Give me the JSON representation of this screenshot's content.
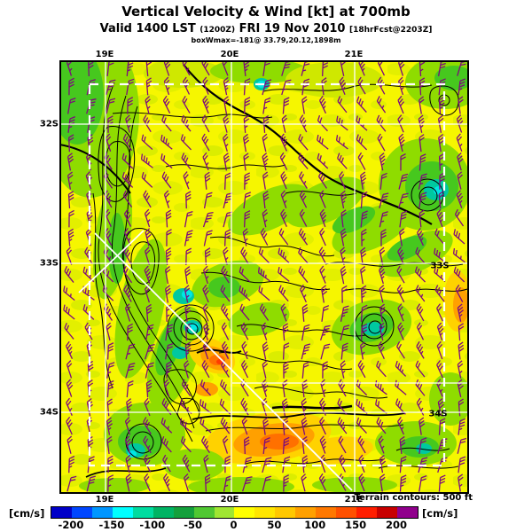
{
  "header": {
    "title": "Vertical Velocity & Wind [kt] at 700mb",
    "valid": "Valid 1400 LST",
    "init": "(1200Z)",
    "date": "FRI 19 Nov 2010",
    "fcst": "[18hrFcst@2203Z]",
    "stats_line": "boxWmax=-181@ 33.79,20.12,1898m"
  },
  "map": {
    "lon_ticks": [
      "19E",
      "20E",
      "21E"
    ],
    "lat_ticks_left": [
      "32S",
      "33S",
      "34S"
    ],
    "lat_ticks_right": [
      "33S",
      "34S"
    ],
    "terrain_note": "Terrain contours: 500 ft",
    "barb_color": "#7D0A7D",
    "background_color": "#F6F600"
  },
  "colorbar": {
    "unit_left": "[cm/s]",
    "unit_right": "[cm/s]",
    "tick_labels": [
      "-200",
      "-150",
      "-100",
      "-50",
      "0",
      "50",
      "100",
      "150",
      "200"
    ],
    "segment_colors": [
      "#0000C8",
      "#0046FF",
      "#0096FF",
      "#00FFFF",
      "#00DCA0",
      "#00B464",
      "#14A03C",
      "#50C832",
      "#A0E632",
      "#FFFF00",
      "#FFE600",
      "#FFC800",
      "#FFA000",
      "#FF7800",
      "#FF5000",
      "#FF1E00",
      "#C80000",
      "#90008C"
    ]
  },
  "chart_data": {
    "type": "heatmap",
    "title": "Vertical Velocity & Wind [kt] at 700mb",
    "subtitle": "Valid 1400 LST (1200Z) FRI 19 Nov 2010 [18hrFcst@2203Z]",
    "annotation": "boxWmax=-181@ 33.79,20.12,1898m",
    "shaded_field": "vertical velocity (cm/s), filled contours",
    "vector_field": "wind barbs (kt), purple",
    "overlay": "terrain height contours, interval 500 ft, black",
    "x_axis": {
      "label": "longitude",
      "ticks": [
        "19E",
        "20E",
        "21E"
      ]
    },
    "y_axis": {
      "label": "latitude",
      "ticks": [
        "32S",
        "33S",
        "34S"
      ]
    },
    "colorbar": {
      "units": "cm/s",
      "range": [
        -225,
        225
      ],
      "step": 25,
      "tick_values": [
        -200,
        -150,
        -100,
        -50,
        0,
        50,
        100,
        150,
        200
      ],
      "colors": [
        "#0000C8",
        "#0046FF",
        "#0096FF",
        "#00FFFF",
        "#00DCA0",
        "#00B464",
        "#14A03C",
        "#50C832",
        "#A0E632",
        "#FFFF00",
        "#FFE600",
        "#FFC800",
        "#FFA000",
        "#FF7800",
        "#FF5000",
        "#FF1E00",
        "#C80000",
        "#90008C"
      ]
    },
    "field_summary": "Domain mostly weak vertical motion (-25 to +50 cm/s, yellow / yellow-green mottling). Strong ascent cores (teal-cyan, ca. -100 to -150 cm/s) along the mountain chains near 20.1E 33.8S and on the eastern ranges; strong descent (orange-red, +75 to +150 cm/s) in lee areas near 20-20.7E around 34.3S. Reported extreme: Wmax = -181 cm/s at 33.79S, 20.12E, 1898 m. White dashed rectangle marks nested model box; white X / diagonal marks cross-section and Wmax locator."
  }
}
